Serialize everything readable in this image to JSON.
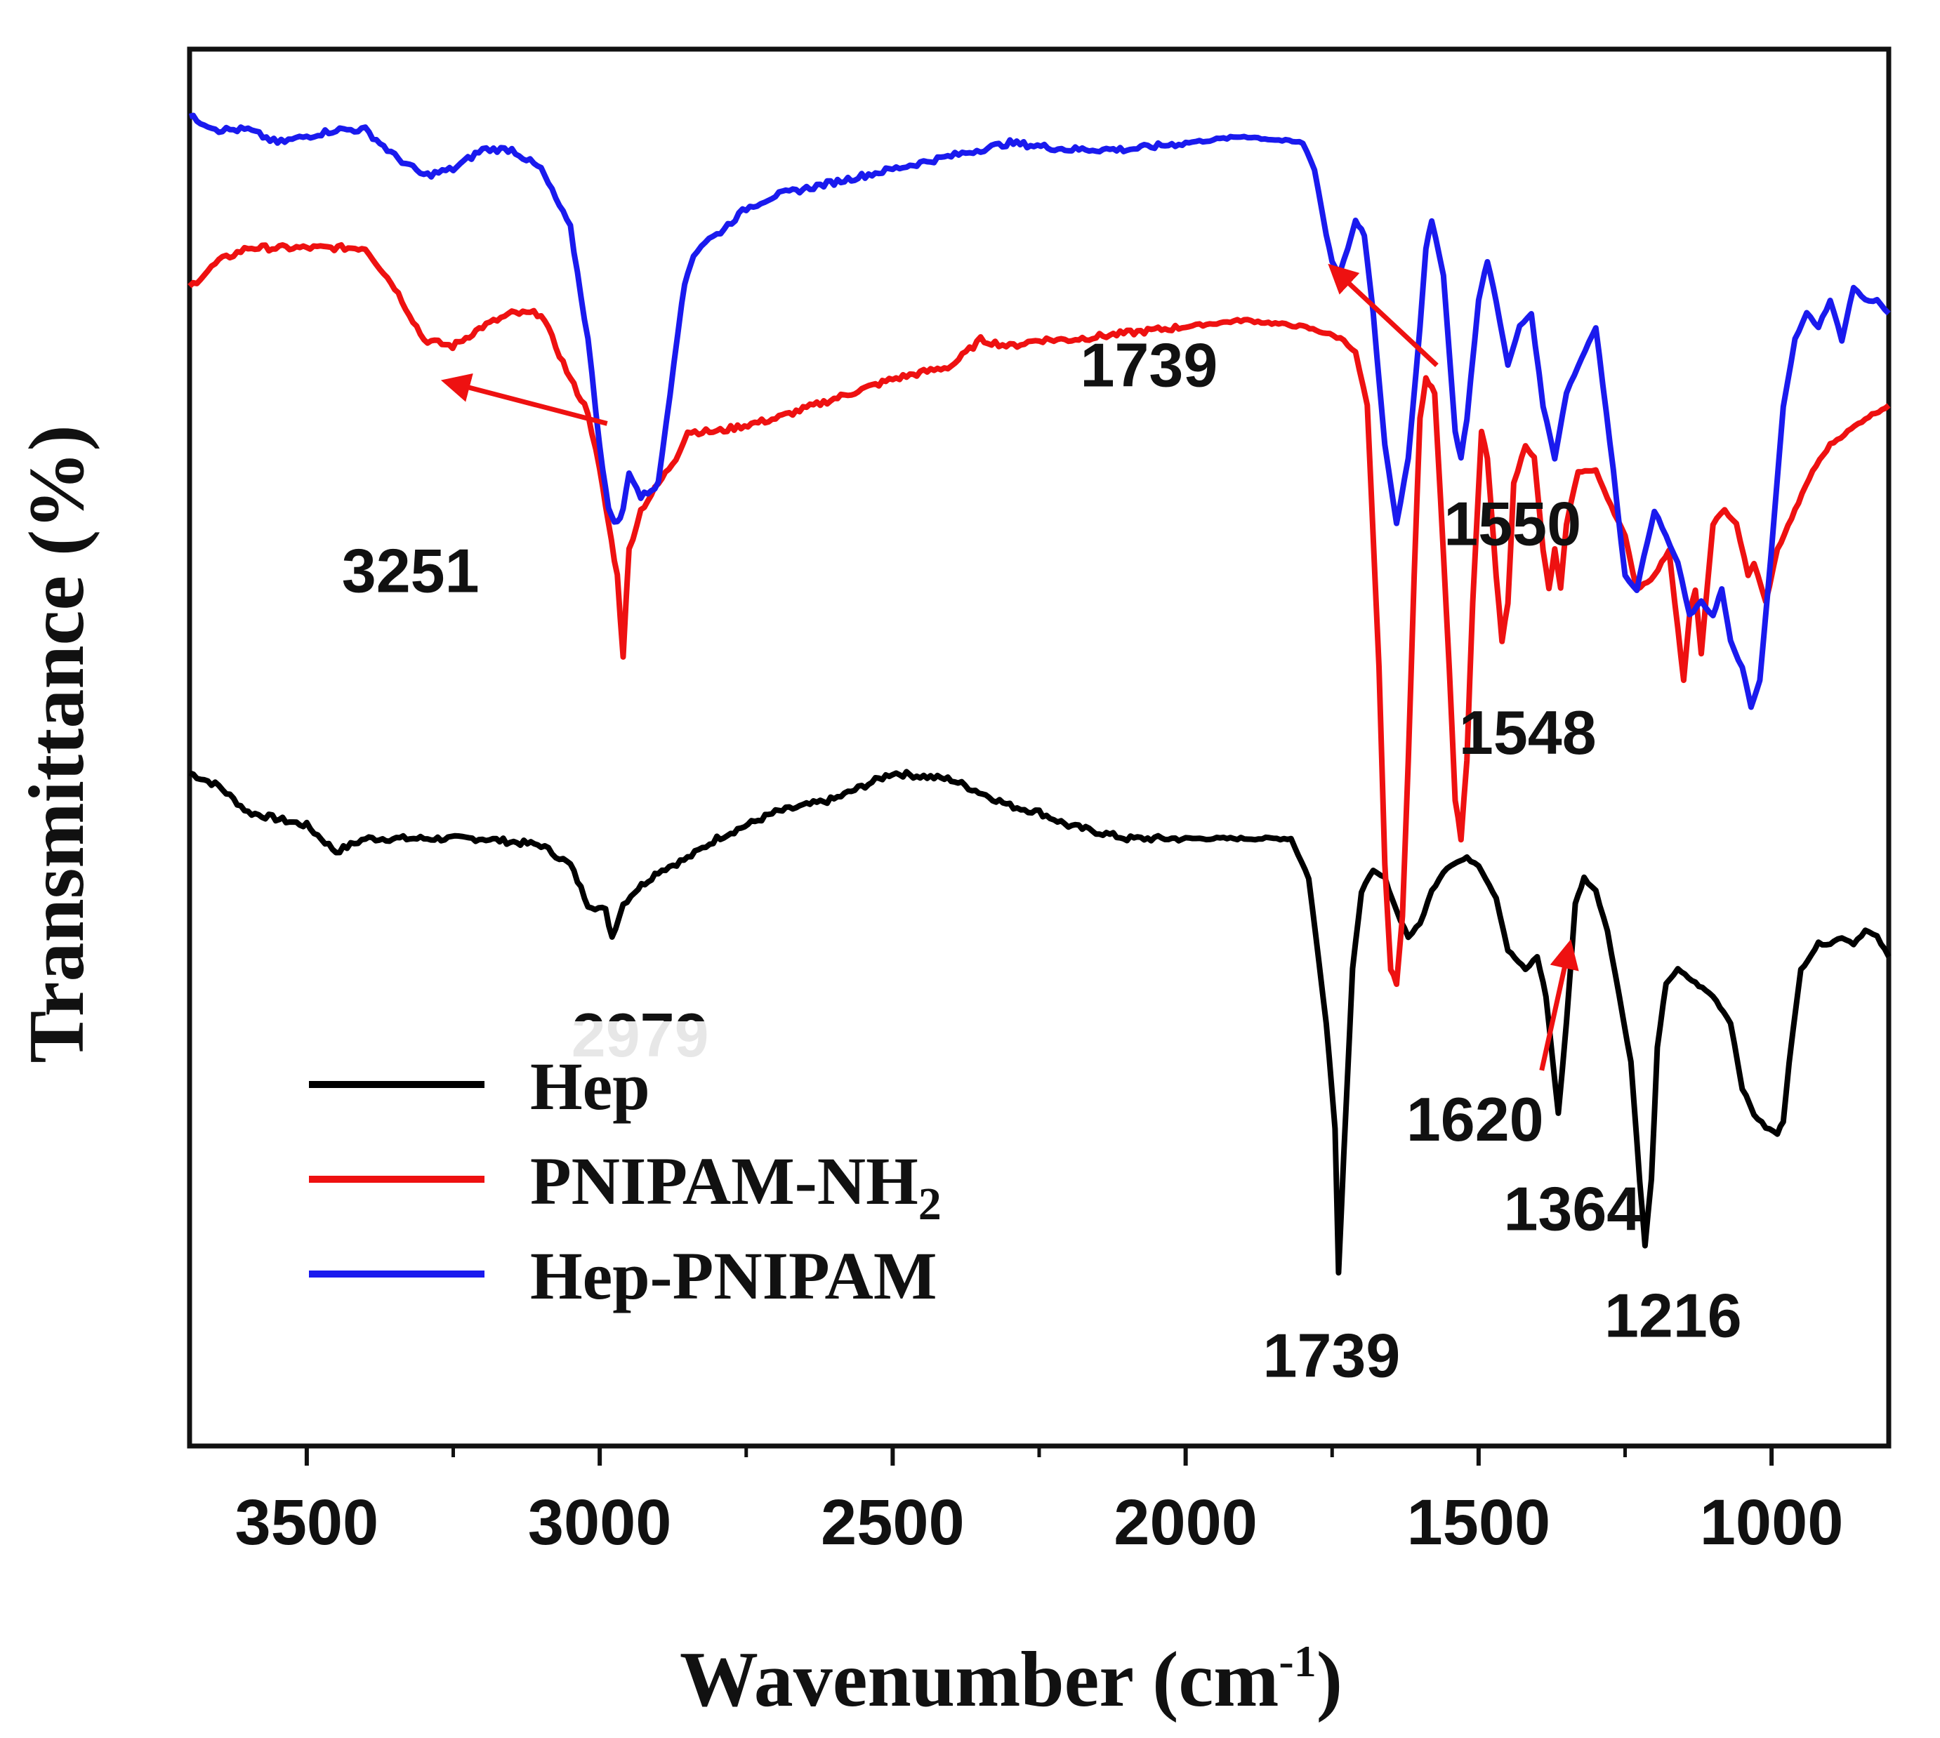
{
  "chart_data": {
    "type": "line",
    "title": "",
    "xlabel": "Wavenumber (cm",
    "xlabel_sup": "-1",
    "xlabel_close": ")",
    "ylabel": "Transmittance (%)",
    "xlim": [
      3700,
      800
    ],
    "ylim": [
      0,
      100
    ],
    "x_reversed": true,
    "xticks": [
      3500,
      3000,
      2500,
      2000,
      1500,
      1000
    ],
    "xtick_labels": [
      "3500",
      "3000",
      "2500",
      "2000",
      "1500",
      "1000"
    ],
    "grid": false,
    "legend_position": "bottom-left",
    "series": [
      {
        "name": "Hep",
        "color": "#000000",
        "x": [
          3700,
          3650,
          3600,
          3500,
          3450,
          3400,
          3300,
          3200,
          3100,
          3050,
          3020,
          2990,
          2979,
          2960,
          2940,
          2900,
          2850,
          2800,
          2700,
          2600,
          2500,
          2400,
          2300,
          2250,
          2200,
          2100,
          2000,
          1900,
          1820,
          1790,
          1760,
          1745,
          1739,
          1730,
          1715,
          1700,
          1680,
          1660,
          1640,
          1620,
          1600,
          1580,
          1560,
          1548,
          1520,
          1500,
          1470,
          1450,
          1420,
          1400,
          1385,
          1364,
          1350,
          1335,
          1320,
          1300,
          1280,
          1260,
          1240,
          1225,
          1216,
          1205,
          1195,
          1180,
          1160,
          1130,
          1100,
          1070,
          1050,
          1030,
          1010,
          990,
          980,
          970,
          950,
          920,
          900,
          880,
          860,
          840,
          820,
          800
        ],
        "y": [
          47,
          46,
          44,
          43,
          41,
          42,
          42,
          42,
          41.5,
          40,
          37,
          36.5,
          34.5,
          37,
          38,
          39.5,
          40.5,
          42,
          44,
          45,
          47,
          46.5,
          44.5,
          44,
          43,
          42,
          42,
          42,
          42,
          39,
          28,
          20,
          9,
          18,
          32,
          38,
          39.5,
          39,
          36.5,
          34.5,
          35.5,
          38,
          39.5,
          40,
          40.5,
          40,
          37.5,
          33.5,
          32,
          33,
          30,
          21,
          28,
          37,
          39,
          38,
          35,
          30,
          25,
          16,
          11,
          16,
          26,
          31,
          32,
          31,
          30,
          28,
          23,
          21,
          20,
          19.5,
          20.5,
          25,
          32,
          34,
          34,
          34.5,
          34,
          35,
          34.5,
          33
        ]
      },
      {
        "name": "PNIPAM-NH",
        "name_sub": "2",
        "color": "#ee1111",
        "x": [
          3700,
          3650,
          3600,
          3500,
          3400,
          3350,
          3300,
          3251,
          3200,
          3150,
          3100,
          3050,
          3020,
          3000,
          2985,
          2970,
          2960,
          2950,
          2930,
          2900,
          2870,
          2850,
          2800,
          2700,
          2600,
          2500,
          2400,
          2350,
          2300,
          2250,
          2200,
          2100,
          2000,
          1900,
          1800,
          1760,
          1730,
          1710,
          1690,
          1670,
          1660,
          1650,
          1640,
          1630,
          1620,
          1610,
          1600,
          1590,
          1575,
          1565,
          1550,
          1540,
          1530,
          1520,
          1510,
          1495,
          1485,
          1470,
          1460,
          1450,
          1440,
          1420,
          1405,
          1390,
          1380,
          1370,
          1360,
          1350,
          1330,
          1300,
          1280,
          1250,
          1230,
          1200,
          1175,
          1165,
          1150,
          1140,
          1130,
          1120,
          1100,
          1080,
          1060,
          1040,
          1030,
          1010,
          990,
          960,
          930,
          900,
          870,
          840,
          800
        ],
        "y": [
          84,
          86,
          87,
          87,
          87,
          84,
          80,
          79.5,
          81,
          82,
          82,
          77,
          74.5,
          70,
          66,
          62,
          56,
          64,
          67,
          69,
          71,
          73,
          73,
          74,
          75.5,
          77,
          78,
          80,
          79.5,
          80,
          80,
          80.5,
          81,
          81.5,
          81,
          80.5,
          80,
          79,
          75,
          55,
          40,
          32,
          31,
          36,
          48,
          62,
          74,
          77,
          76,
          68,
          55,
          45,
          42,
          48,
          60,
          73,
          71,
          62,
          57,
          60,
          69,
          72,
          71,
          64,
          61,
          64,
          61,
          66,
          70,
          70,
          68,
          65,
          61,
          62,
          64,
          60,
          54,
          59,
          61,
          56,
          66,
          67,
          66,
          62,
          63,
          60,
          64,
          67,
          70,
          72,
          73,
          74,
          75
        ]
      },
      {
        "name": "Hep-PNIPAM",
        "color": "#1a1aee",
        "x": [
          3700,
          3650,
          3600,
          3550,
          3500,
          3450,
          3400,
          3350,
          3300,
          3250,
          3200,
          3150,
          3100,
          3050,
          3020,
          3000,
          2985,
          2970,
          2960,
          2950,
          2930,
          2900,
          2880,
          2860,
          2850,
          2840,
          2820,
          2800,
          2750,
          2700,
          2600,
          2500,
          2400,
          2350,
          2300,
          2200,
          2100,
          2000,
          1900,
          1800,
          1780,
          1760,
          1750,
          1739,
          1730,
          1710,
          1695,
          1680,
          1660,
          1640,
          1620,
          1600,
          1590,
          1580,
          1560,
          1540,
          1530,
          1520,
          1500,
          1485,
          1470,
          1450,
          1430,
          1410,
          1390,
          1370,
          1350,
          1330,
          1300,
          1270,
          1250,
          1230,
          1200,
          1180,
          1160,
          1140,
          1120,
          1100,
          1085,
          1070,
          1050,
          1035,
          1020,
          1000,
          980,
          960,
          940,
          920,
          900,
          880,
          860,
          840,
          820,
          800
        ],
        "y": [
          97,
          96,
          96,
          95,
          95.5,
          96,
          96,
          94,
          92.5,
          93,
          94.5,
          94.5,
          93,
          88.5,
          80,
          72,
          67,
          66,
          67,
          70,
          68,
          69,
          76,
          83,
          85,
          86.5,
          87.5,
          88,
          90,
          91,
          92,
          93,
          94,
          94.5,
          95,
          94.5,
          94.5,
          95,
          95.5,
          95,
          93,
          88,
          86,
          85,
          86,
          89,
          88,
          82,
          72,
          66,
          71,
          81,
          87,
          89,
          85,
          73,
          71,
          74,
          83,
          86,
          83,
          78,
          81,
          82,
          75,
          71,
          76,
          78,
          81,
          70,
          62,
          61,
          67,
          65,
          63,
          59,
          60,
          59,
          61,
          57,
          55,
          52,
          54,
          64,
          75,
          80,
          82,
          81,
          83,
          80,
          84,
          83,
          83,
          82
        ]
      }
    ],
    "annotations": [
      {
        "text": "3251",
        "x": 3251,
        "series": "PNIPAM-NH",
        "arrow": true,
        "color": "#ee1111"
      },
      {
        "text": "2979",
        "x": 2979,
        "series": "Hep",
        "arrow": false
      },
      {
        "text": "1739",
        "x": 1739,
        "series": "Hep-PNIPAM",
        "arrow": true,
        "color": "#ee1111"
      },
      {
        "text": "1550",
        "x": 1550,
        "series": "PNIPAM-NH",
        "arrow": false
      },
      {
        "text": "1548",
        "x": 1548,
        "series": "PNIPAM-NH",
        "arrow": false
      },
      {
        "text": "1620",
        "x": 1620,
        "series": "Hep",
        "arrow": true,
        "color": "#ee1111"
      },
      {
        "text": "1364",
        "x": 1364,
        "series": "Hep",
        "arrow": false
      },
      {
        "text": "1739",
        "x": 1739,
        "series": "Hep",
        "arrow": false
      },
      {
        "text": "1216",
        "x": 1216,
        "series": "Hep",
        "arrow": false
      }
    ]
  }
}
